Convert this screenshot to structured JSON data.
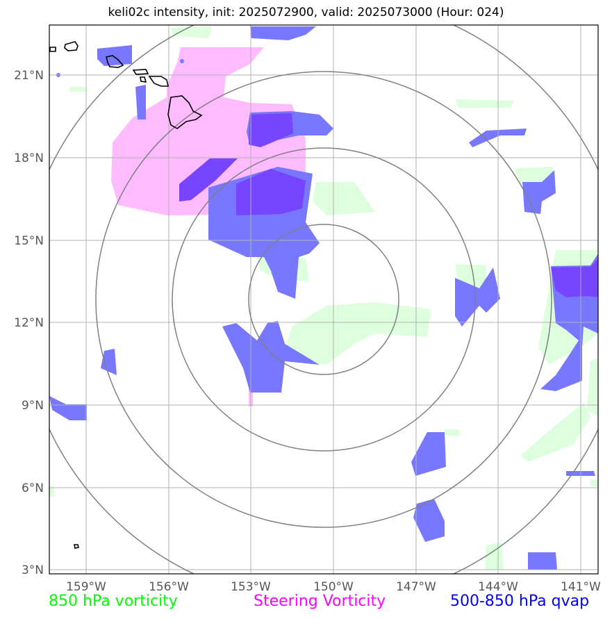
{
  "title": "keli02c intensity, init: 2025072900, valid: 2025073000 (Hour: 024)",
  "map": {
    "lat_ticks": [
      "21°N",
      "18°N",
      "15°N",
      "12°N",
      "9°N",
      "6°N",
      "3°N"
    ],
    "lon_ticks": [
      "159°W",
      "156°W",
      "153°W",
      "150°W",
      "147°W",
      "144°W",
      "141°W"
    ],
    "center": {
      "lon": -150,
      "lat": 13
    },
    "range_rings": 4
  },
  "legend": {
    "vorticity_850": {
      "label": "850 hPa vorticity",
      "color": "#00ff00"
    },
    "steering": {
      "label": "Steering Vorticity",
      "color": "#ff00ff"
    },
    "qvap": {
      "label": "500-850 hPa qvap",
      "color": "#0000ff"
    }
  },
  "colors": {
    "green_fill": "#ddffdd",
    "magenta_fill": "#ffbbff",
    "blue_fill": "#7777ff",
    "purple_fill": "#7744ff",
    "grid": "#b0b0b0",
    "ring": "#808080"
  }
}
